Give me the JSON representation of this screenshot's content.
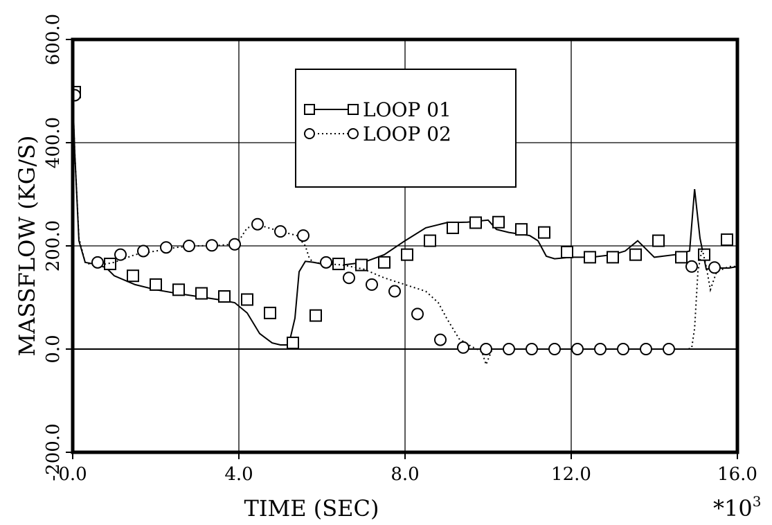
{
  "chart_data": {
    "type": "line",
    "xlabel": "TIME (SEC)",
    "ylabel": "MASSFLOW (KG/S)",
    "x_multiplier_label": "*10",
    "x_multiplier_exp": "3",
    "xlim": [
      0,
      16
    ],
    "ylim": [
      -200,
      600
    ],
    "x_ticks": [
      0,
      4,
      8,
      12,
      16
    ],
    "x_tick_labels": [
      "0.0",
      "4.0",
      "8.0",
      "12.0",
      "16.0"
    ],
    "y_ticks": [
      -200,
      0,
      200,
      400,
      600
    ],
    "y_tick_labels": [
      "-200.0",
      "0.0",
      "200.0",
      "400.0",
      "600.0"
    ],
    "grid": true,
    "legend_position": "top-center",
    "series": [
      {
        "name": "LOOP 01",
        "line_style": "solid",
        "marker": "square",
        "x": [
          0.0,
          0.05,
          0.15,
          0.3,
          0.5,
          0.8,
          1.0,
          1.5,
          2.0,
          2.5,
          3.0,
          3.5,
          3.9,
          4.2,
          4.5,
          4.8,
          5.0,
          5.2,
          5.35,
          5.45,
          5.6,
          5.8,
          6.0,
          6.5,
          7.0,
          7.5,
          8.0,
          8.5,
          9.0,
          9.5,
          10.0,
          10.2,
          10.5,
          11.0,
          11.2,
          11.4,
          11.6,
          12.0,
          12.5,
          13.0,
          13.3,
          13.6,
          14.0,
          14.5,
          14.85,
          14.97,
          15.1,
          15.25,
          15.5,
          15.8,
          16.0
        ],
        "y": [
          500,
          380,
          210,
          168,
          165,
          158,
          142,
          125,
          115,
          108,
          102,
          96,
          90,
          70,
          30,
          12,
          8,
          8,
          60,
          150,
          170,
          168,
          165,
          163,
          168,
          183,
          210,
          235,
          245,
          246,
          250,
          232,
          226,
          220,
          210,
          180,
          175,
          178,
          178,
          183,
          190,
          210,
          178,
          183,
          190,
          310,
          215,
          155,
          157,
          157,
          160
        ],
        "marker_x": [
          0.05,
          0.9,
          1.45,
          2.0,
          2.55,
          3.1,
          3.65,
          4.2,
          4.75,
          5.3,
          5.85,
          6.4,
          6.95,
          7.5,
          8.05,
          8.6,
          9.15,
          9.7,
          10.25,
          10.8,
          11.35,
          11.9,
          12.45,
          13.0,
          13.55,
          14.1,
          14.65,
          15.2,
          15.75
        ],
        "marker_y": [
          498,
          165,
          142,
          125,
          115,
          108,
          102,
          96,
          70,
          12,
          65,
          165,
          163,
          168,
          183,
          210,
          235,
          245,
          246,
          232,
          226,
          188,
          178,
          178,
          183,
          210,
          178,
          183,
          212
        ]
      },
      {
        "name": "LOOP 02",
        "line_style": "dotted",
        "marker": "circle",
        "x": [
          0.0,
          0.05,
          0.15,
          0.3,
          0.5,
          0.8,
          1.0,
          1.5,
          2.0,
          2.5,
          3.0,
          3.5,
          3.8,
          4.0,
          4.2,
          4.5,
          5.0,
          5.4,
          5.6,
          5.7,
          5.8,
          6.0,
          6.5,
          7.0,
          7.5,
          8.0,
          8.5,
          8.8,
          9.0,
          9.3,
          9.6,
          9.85,
          9.95,
          10.0,
          10.1,
          10.4,
          11.0,
          11.5,
          12.0,
          12.5,
          13.0,
          13.5,
          14.0,
          14.5,
          14.8,
          14.9,
          14.97,
          15.05,
          15.15,
          15.25,
          15.35,
          15.5,
          15.8,
          16.0
        ],
        "y": [
          490,
          380,
          215,
          168,
          162,
          165,
          168,
          183,
          190,
          197,
          200,
          201,
          203,
          210,
          235,
          240,
          228,
          220,
          200,
          175,
          168,
          166,
          163,
          155,
          138,
          125,
          112,
          90,
          60,
          20,
          5,
          -5,
          -30,
          -20,
          0,
          0,
          0,
          0,
          0,
          0,
          0,
          0,
          0,
          0,
          0,
          2,
          40,
          150,
          195,
          160,
          115,
          150,
          160,
          160
        ],
        "marker_x": [
          0.05,
          0.6,
          1.15,
          1.7,
          2.25,
          2.8,
          3.35,
          3.9,
          4.45,
          5.0,
          5.55,
          6.1,
          6.65,
          7.2,
          7.75,
          8.3,
          8.85,
          9.4,
          9.95,
          10.5,
          11.05,
          11.6,
          12.15,
          12.7,
          13.25,
          13.8,
          14.35,
          14.9,
          15.45
        ],
        "marker_y": [
          492,
          168,
          183,
          190,
          197,
          200,
          201,
          203,
          242,
          228,
          220,
          168,
          138,
          125,
          112,
          68,
          18,
          3,
          0,
          0,
          0,
          0,
          0,
          0,
          0,
          0,
          0,
          160,
          158
        ]
      }
    ]
  }
}
